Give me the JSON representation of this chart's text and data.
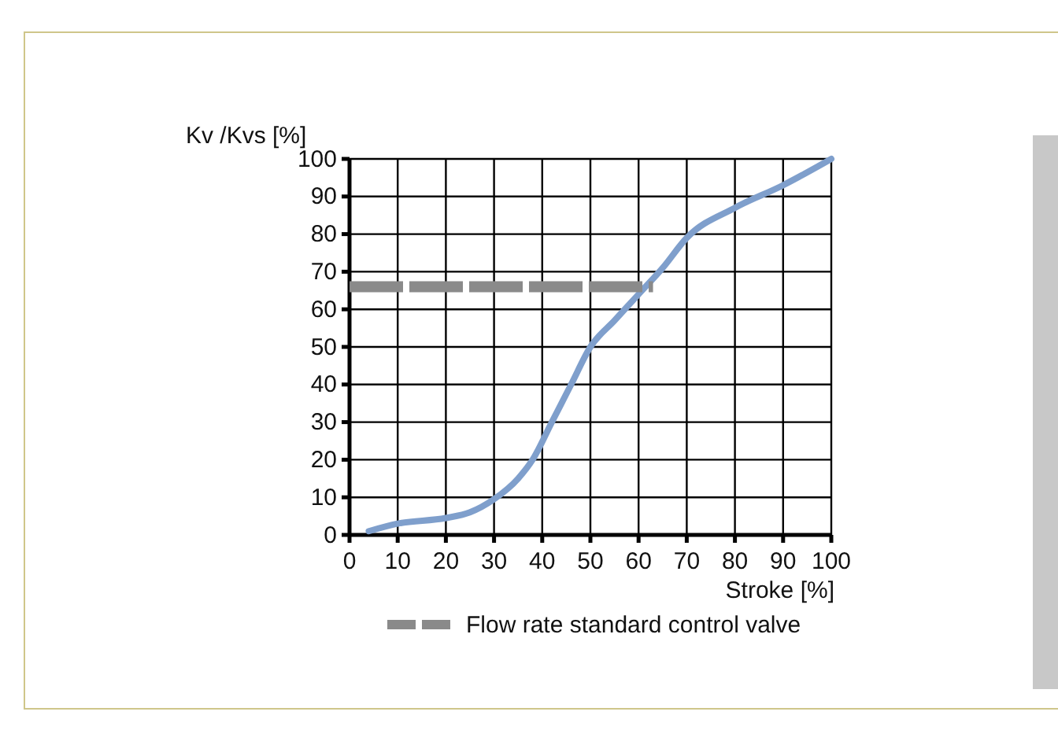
{
  "chart_data": {
    "type": "line",
    "xlabel": "Stroke [%]",
    "ylabel": "Kv /Kvs [%]",
    "xlim": [
      0,
      100
    ],
    "ylim": [
      0,
      100
    ],
    "xticks": [
      0,
      10,
      20,
      30,
      40,
      50,
      60,
      70,
      80,
      90,
      100
    ],
    "yticks": [
      0,
      10,
      20,
      30,
      40,
      50,
      60,
      70,
      80,
      90,
      100
    ],
    "grid": true,
    "legend": "bottom",
    "series": [
      {
        "color": "#7f9fcc",
        "x": [
          4,
          10,
          20,
          25,
          30,
          35,
          38,
          42,
          46,
          50,
          55,
          60,
          65,
          70,
          80,
          90,
          100
        ],
        "values": [
          1,
          3,
          4.5,
          6,
          9.5,
          15,
          20,
          30,
          40,
          50,
          57,
          64,
          71,
          79,
          87,
          93,
          100
        ]
      },
      {
        "name": "Flow rate standard control valve",
        "color": "#8a8a8a",
        "line_style": "dashed",
        "x": [
          0,
          63
        ],
        "values": [
          66,
          66
        ]
      }
    ]
  }
}
